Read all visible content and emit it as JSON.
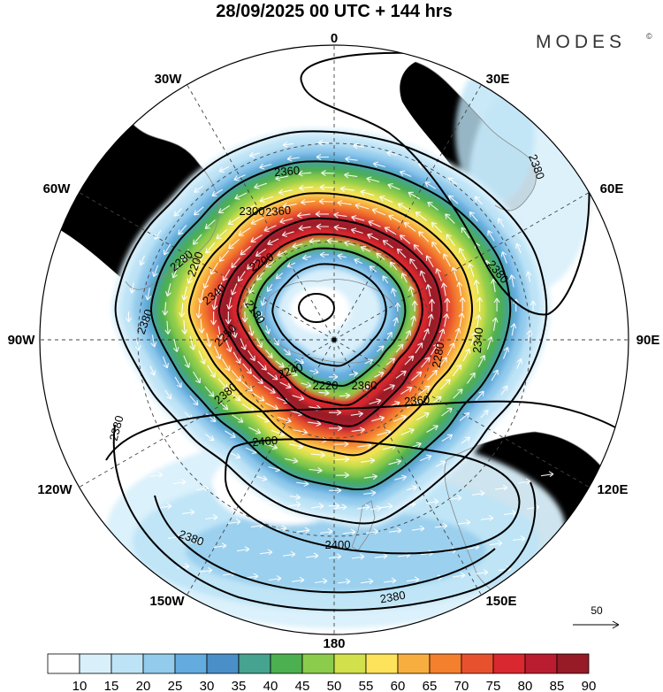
{
  "title": "28/09/2025  00 UTC  + 144 hrs",
  "brand": "MODES",
  "brand_mark": "©",
  "longitude_labels": [
    "0",
    "30E",
    "60E",
    "90E",
    "120E",
    "150E",
    "180",
    "150W",
    "120W",
    "90W",
    "60W",
    "30W"
  ],
  "contour_labels": [
    "2360",
    "2380",
    "2380",
    "2380",
    "2380",
    "2380",
    "2400",
    "2400",
    "2380",
    "2380",
    "2360",
    "2300",
    "2280",
    "2200",
    "2180",
    "2250",
    "2220",
    "2240",
    "2340",
    "2360",
    "2360",
    "2280",
    "2340",
    "2200"
  ],
  "vector_reference": "50",
  "colorbar": {
    "ticks": [
      "10",
      "15",
      "20",
      "25",
      "30",
      "35",
      "40",
      "45",
      "50",
      "55",
      "60",
      "65",
      "70",
      "75",
      "80",
      "85",
      "90"
    ],
    "colors": [
      "#ffffff",
      "#d9f0fb",
      "#bde3f6",
      "#92cbec",
      "#64abdf",
      "#4a8fc8",
      "#45a38f",
      "#4caf50",
      "#8ccc4c",
      "#d2e04b",
      "#fde35b",
      "#f8ae3f",
      "#f47f2d",
      "#e8512e",
      "#d9282f",
      "#bb1d30",
      "#961b26"
    ]
  },
  "colors": {
    "land": "#efefef",
    "coast": "#888888",
    "grid": "#444444",
    "contour": "#000000",
    "vectors": "#ffffff"
  }
}
